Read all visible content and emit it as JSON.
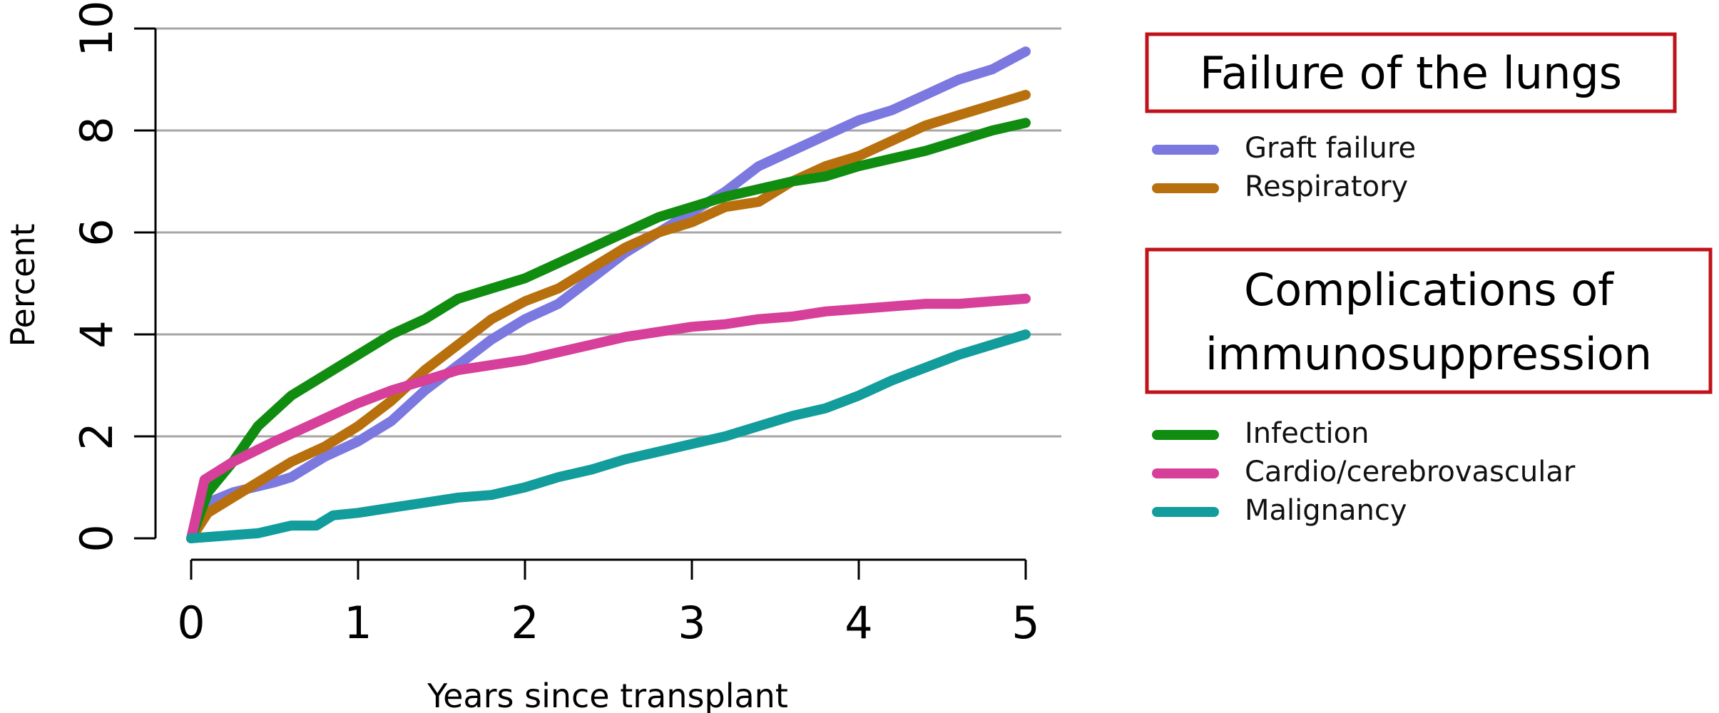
{
  "chart_data": {
    "type": "line",
    "xlabel": "Years since transplant",
    "ylabel": "Percent",
    "xlim": [
      0,
      5
    ],
    "ylim": [
      0,
      10
    ],
    "xticks": [
      "0",
      "1",
      "2",
      "3",
      "4",
      "5"
    ],
    "yticks": [
      "0",
      "2",
      "4",
      "6",
      "8",
      "10"
    ],
    "grid": "horizontal",
    "legend_groups": [
      {
        "title": "Failure of the lungs",
        "series": [
          "Graft failure",
          "Respiratory"
        ]
      },
      {
        "title_lines": [
          "Complications of",
          "immunosuppression"
        ],
        "series": [
          "Infection",
          "Cardio/cerebrovascular",
          "Malignancy"
        ]
      }
    ],
    "series": [
      {
        "name": "Graft failure",
        "color": "#7b78e0",
        "x": [
          0,
          0.1,
          0.25,
          0.5,
          0.6,
          0.8,
          1.0,
          1.2,
          1.4,
          1.6,
          1.8,
          2.0,
          2.2,
          2.4,
          2.6,
          2.8,
          3.0,
          3.2,
          3.4,
          3.6,
          3.8,
          4.0,
          4.2,
          4.4,
          4.6,
          4.8,
          5.0
        ],
        "y": [
          0,
          0.7,
          0.9,
          1.1,
          1.2,
          1.6,
          1.9,
          2.3,
          2.9,
          3.4,
          3.9,
          4.3,
          4.6,
          5.1,
          5.6,
          6.0,
          6.4,
          6.8,
          7.3,
          7.6,
          7.9,
          8.2,
          8.4,
          8.7,
          9.0,
          9.2,
          9.55
        ]
      },
      {
        "name": "Respiratory",
        "color": "#b8700f",
        "x": [
          0,
          0.1,
          0.25,
          0.5,
          0.6,
          0.8,
          1.0,
          1.2,
          1.4,
          1.6,
          1.8,
          2.0,
          2.2,
          2.4,
          2.6,
          2.8,
          3.0,
          3.2,
          3.4,
          3.6,
          3.8,
          4.0,
          4.2,
          4.4,
          4.6,
          4.8,
          5.0
        ],
        "y": [
          0,
          0.5,
          0.8,
          1.3,
          1.5,
          1.8,
          2.2,
          2.7,
          3.3,
          3.8,
          4.3,
          4.65,
          4.9,
          5.3,
          5.7,
          6.0,
          6.2,
          6.5,
          6.6,
          7.0,
          7.3,
          7.5,
          7.8,
          8.1,
          8.3,
          8.5,
          8.7
        ]
      },
      {
        "name": "Infection",
        "color": "#108c10",
        "x": [
          0,
          0.1,
          0.25,
          0.4,
          0.6,
          0.8,
          1.0,
          1.2,
          1.4,
          1.6,
          1.8,
          2.0,
          2.2,
          2.4,
          2.6,
          2.8,
          3.0,
          3.2,
          3.4,
          3.6,
          3.8,
          4.0,
          4.2,
          4.4,
          4.6,
          4.8,
          5.0
        ],
        "y": [
          0,
          0.9,
          1.5,
          2.2,
          2.8,
          3.2,
          3.6,
          4.0,
          4.3,
          4.7,
          4.9,
          5.1,
          5.4,
          5.7,
          6.0,
          6.3,
          6.5,
          6.7,
          6.85,
          7.0,
          7.1,
          7.3,
          7.45,
          7.6,
          7.8,
          8.0,
          8.15
        ]
      },
      {
        "name": "Cardio/cerebrovascular",
        "color": "#d63f9a",
        "x": [
          0,
          0.08,
          0.25,
          0.5,
          0.7,
          0.9,
          1.0,
          1.2,
          1.4,
          1.6,
          1.8,
          2.0,
          2.2,
          2.4,
          2.6,
          2.8,
          3.0,
          3.2,
          3.4,
          3.6,
          3.8,
          4.0,
          4.2,
          4.4,
          4.6,
          4.8,
          5.0
        ],
        "y": [
          0,
          1.15,
          1.5,
          1.9,
          2.2,
          2.5,
          2.65,
          2.9,
          3.1,
          3.3,
          3.4,
          3.5,
          3.65,
          3.8,
          3.95,
          4.05,
          4.15,
          4.2,
          4.3,
          4.35,
          4.45,
          4.5,
          4.55,
          4.6,
          4.6,
          4.65,
          4.7
        ]
      },
      {
        "name": "Malignancy",
        "color": "#139c9c",
        "x": [
          0,
          0.2,
          0.4,
          0.6,
          0.75,
          0.85,
          1.0,
          1.2,
          1.4,
          1.6,
          1.8,
          2.0,
          2.2,
          2.4,
          2.6,
          2.8,
          3.0,
          3.2,
          3.4,
          3.6,
          3.8,
          4.0,
          4.2,
          4.4,
          4.6,
          4.8,
          5.0
        ],
        "y": [
          0,
          0.05,
          0.1,
          0.25,
          0.25,
          0.45,
          0.5,
          0.6,
          0.7,
          0.8,
          0.85,
          1.0,
          1.2,
          1.35,
          1.55,
          1.7,
          1.85,
          2.0,
          2.2,
          2.4,
          2.55,
          2.8,
          3.1,
          3.35,
          3.6,
          3.8,
          4.0
        ]
      }
    ]
  }
}
